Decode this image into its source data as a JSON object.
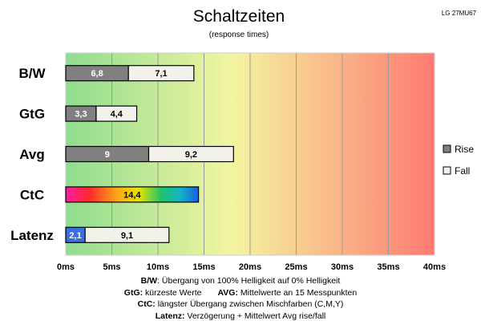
{
  "chart_data": {
    "type": "bar",
    "orientation": "horizontal",
    "stacked": true,
    "title": "Schaltzeiten",
    "subtitle": "(response times)",
    "monitor": "LG 27MU67",
    "categories": [
      "B/W",
      "GtG",
      "Avg",
      "CtC",
      "Latenz"
    ],
    "series": [
      {
        "name": "Rise",
        "values": [
          6.8,
          3.3,
          9,
          null,
          null
        ],
        "color": "#808080"
      },
      {
        "name": "Fall",
        "values": [
          7.1,
          4.4,
          9.2,
          null,
          null
        ],
        "color": "#f2f2ea"
      }
    ],
    "ctc": {
      "value": 14.4,
      "label": "14,4"
    },
    "latenz": {
      "delay": 2.1,
      "delay_label": "2,1",
      "delay_color": "#3b6fe0",
      "avg": 9.1,
      "avg_label": "9,1"
    },
    "bar_labels": {
      "B/W": [
        "6,8",
        "7,1"
      ],
      "GtG": [
        "3,3",
        "4,4"
      ],
      "Avg": [
        "9",
        "9,2"
      ]
    },
    "xlim": [
      0,
      40
    ],
    "xticks": [
      0,
      5,
      10,
      15,
      20,
      25,
      30,
      35,
      40
    ],
    "xtick_labels": [
      "0ms",
      "5ms",
      "10ms",
      "15ms",
      "20ms",
      "25ms",
      "30ms",
      "35ms",
      "40ms"
    ],
    "background_gradient": [
      "#8fdc8f",
      "#f3f5a0",
      "#ff7a72"
    ],
    "grid": true,
    "legend_position": "right"
  },
  "notes": {
    "bw_key": "B/W",
    "bw_text": ":  Übergang von 100% Helligkeit auf 0% Helligkeit",
    "gtg_key": "GtG:",
    "gtg_text": " kürzeste  Werte",
    "avg_key": "AVG:",
    "avg_text": " Mittelwerte  an 15 Messpunkten",
    "ctc_key": "CtC:",
    "ctc_text": " längster Übergang  zwischen Mischfarben (C,M,Y)",
    "lat_key": "Latenz:",
    "lat_text": " Verzögerung  + Mittelwert  Avg rise/fall"
  }
}
